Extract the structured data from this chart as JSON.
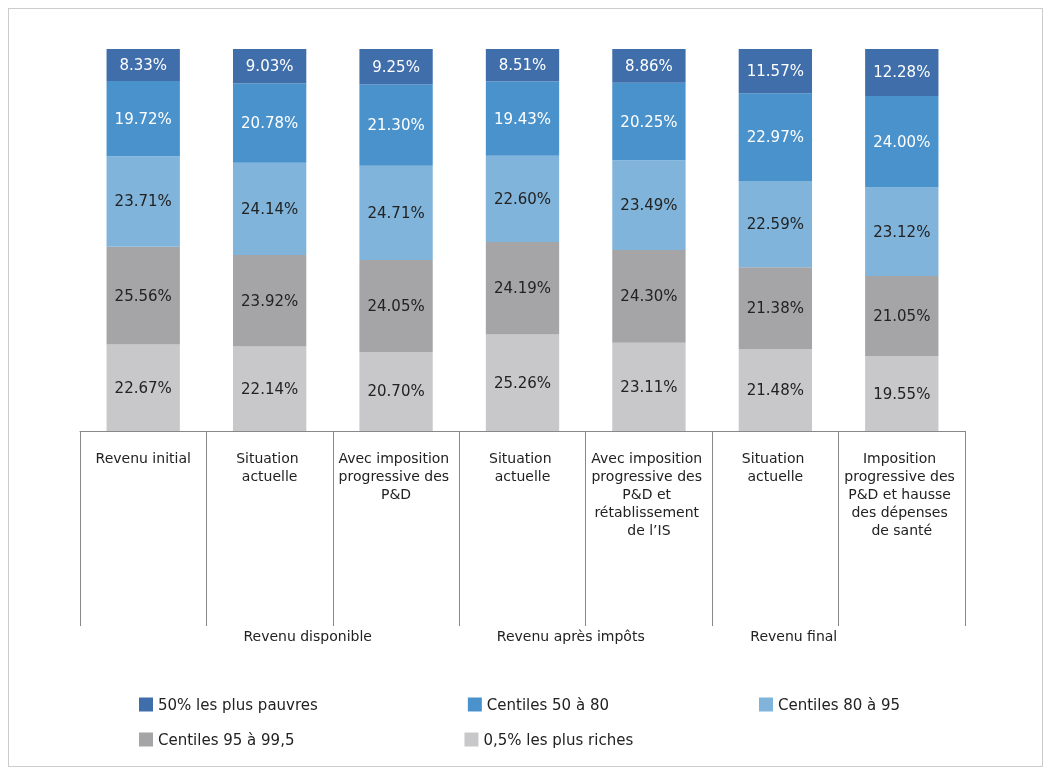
{
  "chart_data": {
    "type": "bar",
    "stacked": true,
    "legend": "bottom",
    "grid": false,
    "categories": [
      "Revenu initial",
      "Situation actuelle",
      "Avec imposition progressive des P&D",
      "Situation actuelle",
      "Avec imposition progressive des P&D et rétablissement de l’IS",
      "Situation actuelle",
      "Imposition progressive des P&D et hausse des dépenses de santé"
    ],
    "annotations": [
      "Revenu disponible",
      "Revenu après impôts",
      "Revenu final"
    ],
    "series": [
      {
        "name": "0,5% les plus riches",
        "color": "#c8c8ca",
        "values": [
          22.67,
          22.14,
          20.7,
          25.26,
          23.11,
          21.48,
          19.55
        ],
        "value_labels": [
          "22.67%",
          "22.14%",
          "20.70%",
          "25.26%",
          "23.11%",
          "21.48%",
          "19.55%"
        ]
      },
      {
        "name": "Centiles 95 à 99,5",
        "color": "#a5a5a7",
        "values": [
          25.56,
          23.92,
          24.05,
          24.19,
          24.3,
          21.38,
          21.05
        ],
        "value_labels": [
          "25.56%",
          "23.92%",
          "24.05%",
          "24.19%",
          "24.30%",
          "21.38%",
          "21.05%"
        ]
      },
      {
        "name": "Centiles 80 à 95",
        "color": "#80b4da",
        "values": [
          23.71,
          24.14,
          24.71,
          22.6,
          23.49,
          22.59,
          23.12
        ],
        "value_labels": [
          "23.71%",
          "24.14%",
          "24.71%",
          "22.60%",
          "23.49%",
          "22.59%",
          "23.12%"
        ]
      },
      {
        "name": "Centiles 50 à 80",
        "color": "#4a92cc",
        "values": [
          19.72,
          20.78,
          21.3,
          19.43,
          20.25,
          22.97,
          24.0
        ],
        "value_labels": [
          "19.72%",
          "20.78%",
          "21.30%",
          "19.43%",
          "20.25%",
          "22.97%",
          "24.00%"
        ]
      },
      {
        "name": "50% les plus pauvres",
        "color": "#3f6eab",
        "values": [
          8.33,
          9.03,
          9.25,
          8.51,
          8.86,
          11.57,
          12.28
        ],
        "value_labels": [
          "8.33%",
          "9.03%",
          "9.25%",
          "8.51%",
          "8.86%",
          "11.57%",
          "12.28%"
        ]
      }
    ]
  }
}
